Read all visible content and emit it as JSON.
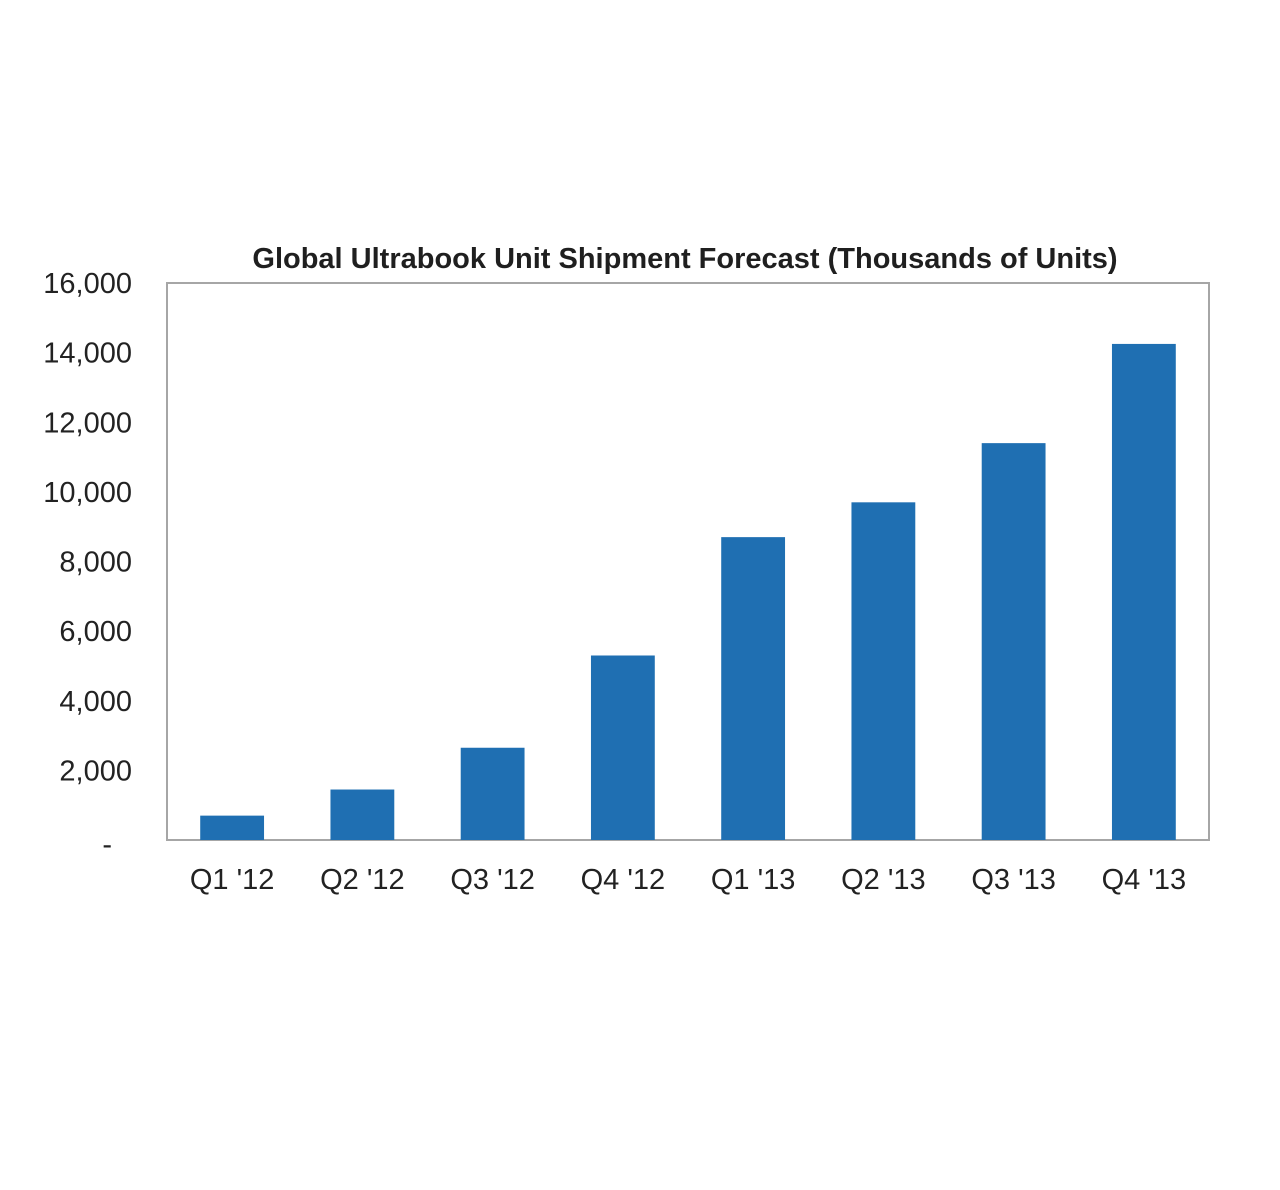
{
  "chart_data": {
    "type": "bar",
    "title": "Global Ultrabook Unit Shipment Forecast (Thousands of Units)",
    "xlabel": "",
    "ylabel": "",
    "categories": [
      "Q1 '12",
      "Q2 '12",
      "Q3 '12",
      "Q4 '12",
      "Q1 '13",
      "Q2 '13",
      "Q3 '13",
      "Q4 '13"
    ],
    "values": [
      700,
      1450,
      2650,
      5300,
      8700,
      9700,
      11400,
      14250
    ],
    "ylim": [
      0,
      16000
    ],
    "yticks": [
      0,
      2000,
      4000,
      6000,
      8000,
      10000,
      12000,
      14000,
      16000
    ],
    "ytick_labels": [
      "-",
      "2,000",
      "4,000",
      "6,000",
      "8,000",
      "10,000",
      "12,000",
      "14,000",
      "16,000"
    ],
    "grid": false,
    "legend": "none",
    "bar_color": "#1f6fb2",
    "frame_color": "#a6a6a6"
  }
}
